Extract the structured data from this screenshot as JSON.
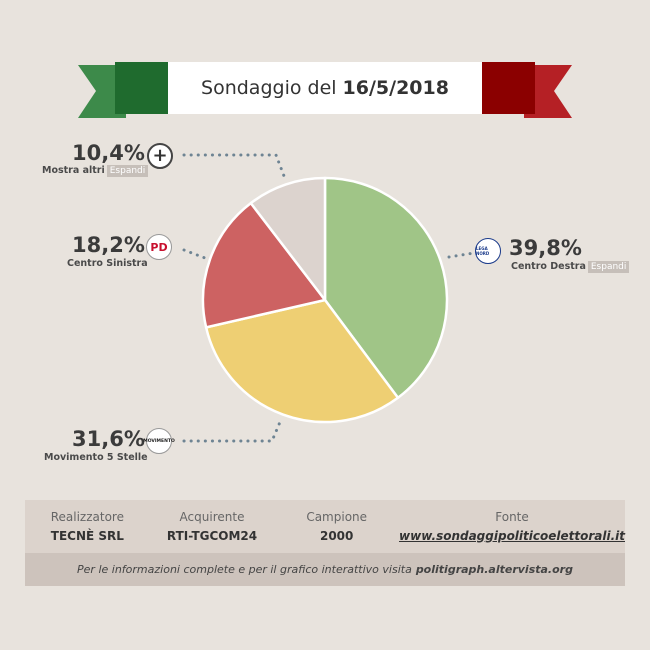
{
  "header": {
    "title_prefix": "Sondaggio del",
    "title_date": "16/5/2018"
  },
  "colors": {
    "flag_green": "#1f6b2e",
    "flag_red": "#8b0000",
    "ribbon_green": "#3d8a4a",
    "ribbon_red": "#b52025"
  },
  "chart_data": {
    "type": "pie",
    "slices": [
      {
        "name": "Centro Destra",
        "value": 39.8,
        "label": "39,8%",
        "color": "#a0c587",
        "logo": "lega-icon",
        "expand": "Espandi"
      },
      {
        "name": "Movimento 5 Stelle",
        "value": 31.6,
        "label": "31,6%",
        "color": "#eecf73",
        "logo": "m5s-icon",
        "expand": ""
      },
      {
        "name": "Centro Sinistra",
        "value": 18.2,
        "label": "18,2%",
        "color": "#cd6262",
        "logo": "pd-icon",
        "expand": ""
      },
      {
        "name": "Mostra altri",
        "value": 10.4,
        "label": "10,4%",
        "color": "#dcd3ce",
        "logo": "plus-icon",
        "expand": "Espandi"
      }
    ]
  },
  "logos": {
    "pd": "PD",
    "m5s": "MOVIMENTO",
    "lega": "LEGA NORD",
    "plus": "+"
  },
  "info": {
    "columns": [
      {
        "header": "Realizzatore",
        "value": "TECNÈ SRL"
      },
      {
        "header": "Acquirente",
        "value": "RTI-TGCOM24"
      },
      {
        "header": "Campione",
        "value": "2000"
      },
      {
        "header": "Fonte",
        "value": "www.sondaggipoliticoelettorali.it"
      }
    ],
    "footer_text": "Per le informazioni complete e per il grafico interattivo visita",
    "footer_link": "politigraph.altervista.org"
  }
}
